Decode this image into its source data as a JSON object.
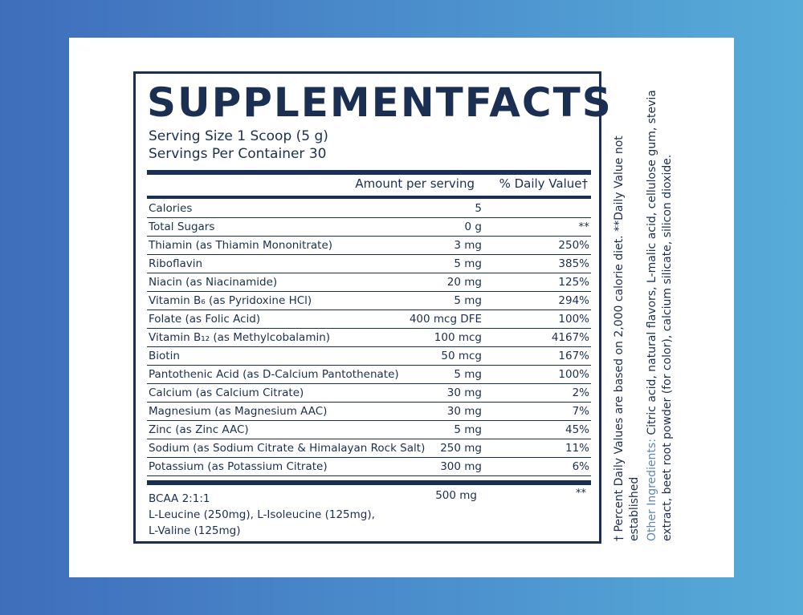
{
  "title": {
    "word1": "SUPPLEMENT",
    "word2": "FACTS"
  },
  "serving": {
    "size": "Serving Size 1 Scoop (5 g)",
    "per_container": "Servings Per Container 30"
  },
  "headers": {
    "amount": "Amount per serving",
    "dv": "% Daily Value†"
  },
  "nutrients": [
    {
      "name": "Calories",
      "amount": "5",
      "dv": ""
    },
    {
      "name": "Total Sugars",
      "amount": "0 g",
      "dv": "**"
    },
    {
      "name": "Thiamin (as Thiamin Mononitrate)",
      "amount": "3 mg",
      "dv": "250%"
    },
    {
      "name": "Riboflavin",
      "amount": "5 mg",
      "dv": "385%"
    },
    {
      "name": "Niacin (as Niacinamide)",
      "amount": "20 mg",
      "dv": "125%"
    },
    {
      "name": "Vitamin B₆ (as Pyridoxine HCl)",
      "amount": "5 mg",
      "dv": "294%"
    },
    {
      "name": "Folate (as Folic Acid)",
      "amount": "400 mcg DFE",
      "dv": "100%"
    },
    {
      "name": "Vitamin B₁₂ (as Methylcobalamin)",
      "amount": "100 mcg",
      "dv": "4167%"
    },
    {
      "name": "Biotin",
      "amount": "50 mcg",
      "dv": "167%"
    },
    {
      "name": "Pantothenic Acid (as D-Calcium Pantothenate)",
      "amount": "5 mg",
      "dv": "100%"
    },
    {
      "name": "Calcium (as Calcium Citrate)",
      "amount": "30 mg",
      "dv": "2%"
    },
    {
      "name": "Magnesium (as Magnesium AAC)",
      "amount": "30 mg",
      "dv": "7%"
    },
    {
      "name": "Zinc (as Zinc AAC)",
      "amount": "5 mg",
      "dv": "45%"
    },
    {
      "name": "Sodium (as Sodium Citrate & Himalayan Rock Salt)",
      "amount": "250 mg",
      "dv": "11%"
    },
    {
      "name": "Potassium (as Potassium Citrate)",
      "amount": "300 mg",
      "dv": "6%"
    }
  ],
  "bcaa": {
    "name": "BCAA 2:1:1",
    "line2": "L-Leucine (250mg), L-Isoleucine (125mg),",
    "line3": "L-Valine (125mg)",
    "amount": "500 mg",
    "dv": "**"
  },
  "footnote": "† Percent Daily Values are based on 2,000 calorie diet. **Daily Value not established",
  "other_ingredients": {
    "label": "Other Ingredients:",
    "text": " Citric acid, natural flavors, L-malic acid, cellulose gum, stevia extract, beet root powder (for color), calcium silicate, silicon dioxide."
  },
  "colors": {
    "ink": "#1b2f52",
    "accent": "#5f86b8",
    "bg_left": "#3f6dbb",
    "bg_right": "#57acd8"
  }
}
